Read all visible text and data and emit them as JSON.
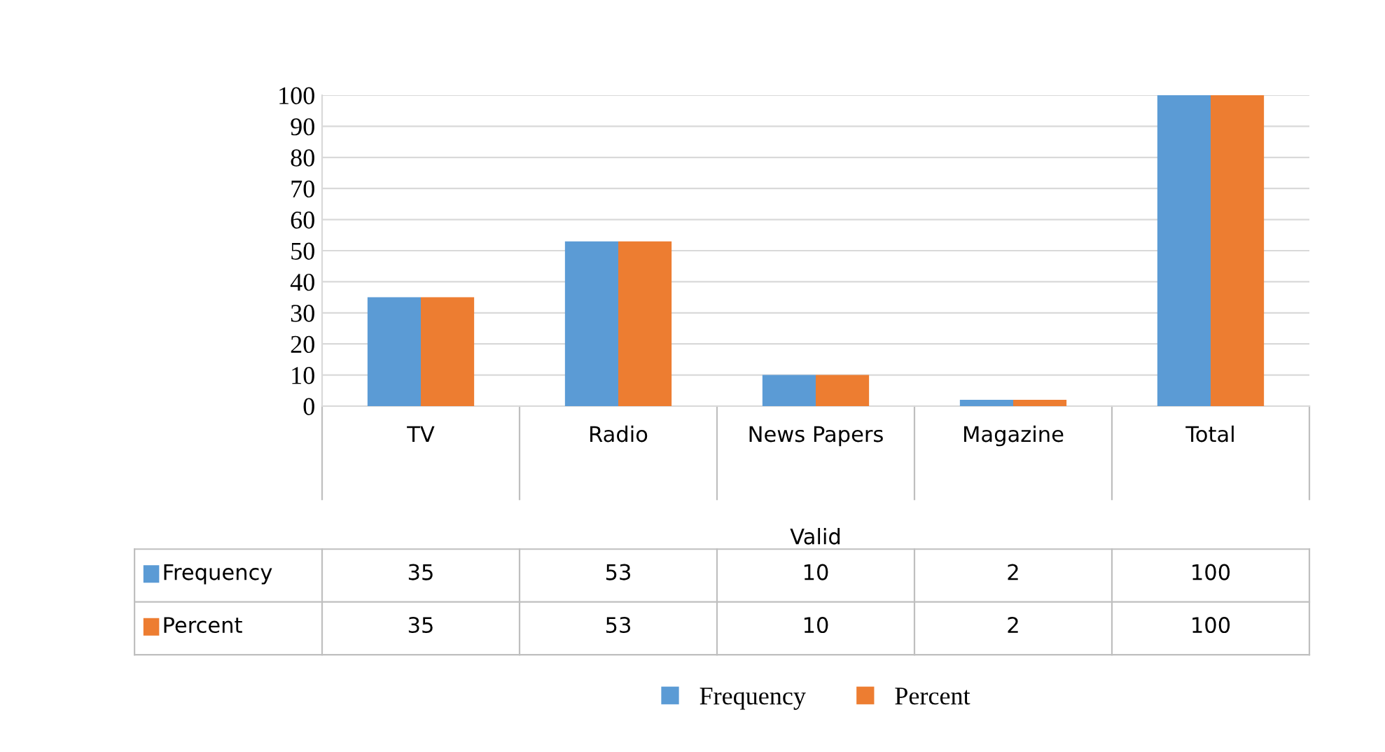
{
  "chart_data": {
    "type": "bar",
    "xlabel": "Valid",
    "categories": [
      "TV",
      "Radio",
      "News Papers",
      "Magazine",
      "Total"
    ],
    "series": [
      {
        "name": "Frequency",
        "color": "#5b9bd5",
        "values": [
          35,
          53,
          10,
          2,
          100
        ]
      },
      {
        "name": "Percent",
        "color": "#ed7d31",
        "values": [
          35,
          53,
          10,
          2,
          100
        ]
      }
    ],
    "ylim": [
      0,
      100
    ],
    "yticks": [
      0,
      10,
      20,
      30,
      40,
      50,
      60,
      70,
      80,
      90,
      100
    ],
    "grid": "y",
    "data_labels": true,
    "legend": "bottom"
  }
}
